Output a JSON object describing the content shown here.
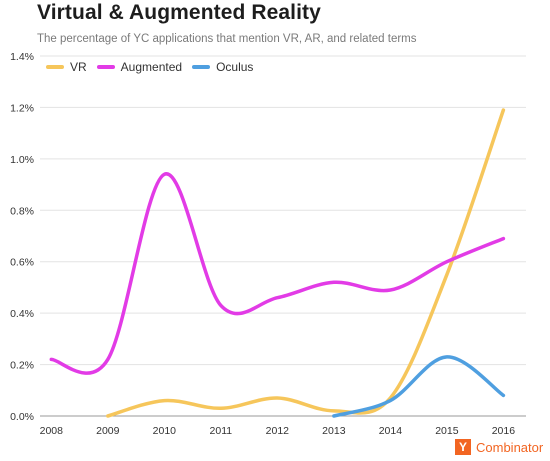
{
  "header": {
    "title": "Virtual & Augmented Reality",
    "subtitle": "The percentage of YC applications that mention VR, AR, and related terms"
  },
  "brand": {
    "logo_letter": "Y",
    "name": "Combinator",
    "color": "#f26522"
  },
  "chart_data": {
    "type": "line",
    "title": "Virtual & Augmented Reality",
    "subtitle": "The percentage of YC applications that mention VR, AR, and related terms",
    "xlabel": "",
    "ylabel": "",
    "x": [
      2008,
      2009,
      2010,
      2011,
      2012,
      2013,
      2014,
      2015,
      2016
    ],
    "x_tick_labels": [
      "2008",
      "2009",
      "2010",
      "2011",
      "2012",
      "2013",
      "2014",
      "2015",
      "2016"
    ],
    "y_tick_labels": [
      "0.0%",
      "0.2%",
      "0.4%",
      "0.6%",
      "0.8%",
      "1.0%",
      "1.2%",
      "1.4%"
    ],
    "y_ticks": [
      0,
      0.2,
      0.4,
      0.6,
      0.8,
      1.0,
      1.2,
      1.4
    ],
    "ylim": [
      0,
      1.4
    ],
    "xlim": [
      2007.8,
      2016.4
    ],
    "grid": "horizontal",
    "legend_position": "top-left",
    "series": [
      {
        "name": "VR",
        "color": "#f6c65b",
        "x": [
          2009,
          2010,
          2011,
          2012,
          2013,
          2014,
          2015,
          2016
        ],
        "values": [
          0.0,
          0.06,
          0.03,
          0.07,
          0.02,
          0.07,
          0.55,
          1.19
        ]
      },
      {
        "name": "Augmented",
        "color": "#e23be6",
        "x": [
          2008,
          2009,
          2010,
          2011,
          2012,
          2013,
          2014,
          2015,
          2016
        ],
        "values": [
          0.22,
          0.22,
          0.94,
          0.43,
          0.46,
          0.52,
          0.49,
          0.6,
          0.69
        ]
      },
      {
        "name": "Oculus",
        "color": "#4f9fe0",
        "x": [
          2013,
          2014,
          2015,
          2016
        ],
        "values": [
          0.0,
          0.06,
          0.23,
          0.08
        ]
      }
    ]
  }
}
